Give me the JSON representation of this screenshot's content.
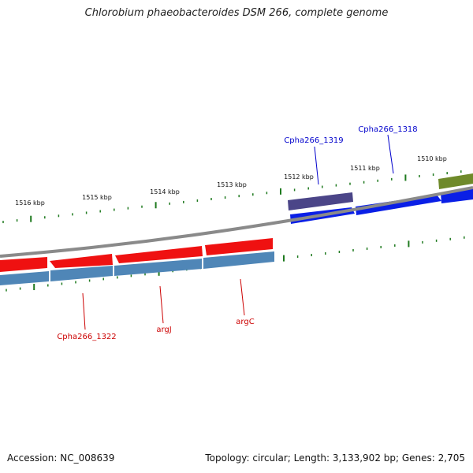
{
  "title": "Chlorobium phaeobacteroides DSM 266, complete genome",
  "footer": {
    "accession": "Accession: NC_008639",
    "summary": "Topology: circular; Length: 3,133,902 bp; Genes: 2,705"
  },
  "colors": {
    "backbone": "#8a8a8a",
    "tick": "#1f7a1f",
    "forward_cds": "#0a1fe6",
    "forward_other": "#4b4588",
    "forward_olive": "#6f8a2a",
    "reverse_red": "#ef1111",
    "reverse_steel": "#4f86b7",
    "label_forward": "#0000cc",
    "label_reverse": "#cc0000"
  },
  "scale": {
    "unit": "kbp",
    "labels": [
      "1516 kbp",
      "1515 kbp",
      "1514 kbp",
      "1513 kbp",
      "1512 kbp",
      "1511 kbp",
      "1510 kbp"
    ]
  },
  "genes": {
    "forward": [
      {
        "label": "Cpha266_1319",
        "color_key": "forward_other"
      },
      {
        "label": "Cpha266_1318",
        "color_key": "forward_cds"
      }
    ],
    "reverse": [
      {
        "label": "Cpha266_1322",
        "color_key": "reverse_red"
      },
      {
        "label": "argJ",
        "color_key": "reverse_red"
      },
      {
        "label": "argC",
        "color_key": "reverse_red"
      }
    ]
  }
}
